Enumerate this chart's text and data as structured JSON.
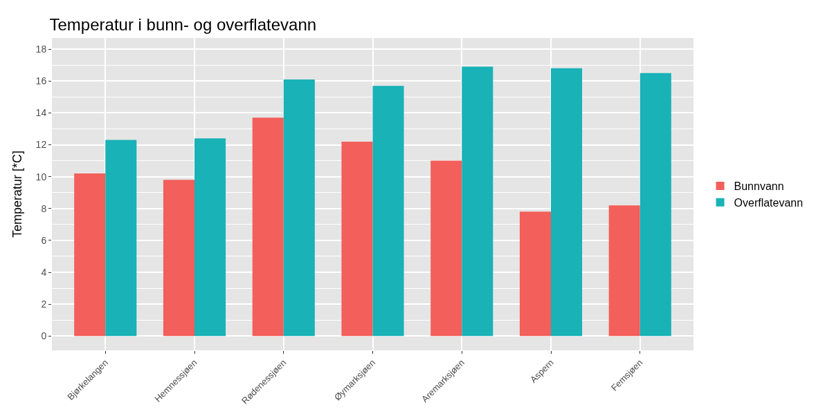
{
  "chart_data": {
    "type": "bar",
    "title": "Temperatur i bunn- og overflatevann",
    "ylabel": "Temperatur [*C]",
    "categories": [
      "Bjørkelangen",
      "Hemnessjøen",
      "Rødenessjøen",
      "Øymarksjøen",
      "Aremarksjøen",
      "Aspern",
      "Femsjøen"
    ],
    "series": [
      {
        "name": "Bunnvann",
        "color": "#f35f5a",
        "values": [
          10.2,
          9.8,
          13.7,
          12.2,
          11.0,
          7.8,
          8.2
        ]
      },
      {
        "name": "Overflatevann",
        "color": "#18b2b7",
        "values": [
          12.3,
          12.4,
          16.1,
          15.7,
          16.9,
          16.8,
          16.5
        ]
      }
    ],
    "ylim": [
      -0.9,
      18.7
    ],
    "yticks": [
      0,
      2,
      4,
      6,
      8,
      10,
      12,
      14,
      16,
      18
    ],
    "grid": true,
    "legend": "right"
  }
}
